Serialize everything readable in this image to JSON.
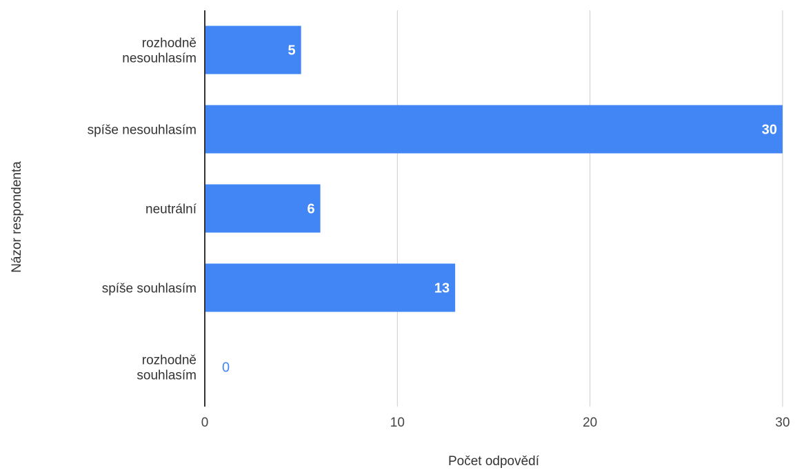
{
  "chart_data": {
    "type": "bar",
    "orientation": "horizontal",
    "categories": [
      [
        "rozhodně",
        "nesouhlasím"
      ],
      [
        "spíše nesouhlasím"
      ],
      [
        "neutrální"
      ],
      [
        "spíše souhlasím"
      ],
      [
        "rozhodně",
        "souhlasím"
      ]
    ],
    "values": [
      5,
      30,
      6,
      13,
      0
    ],
    "xlabel": "Počet odpovědí",
    "ylabel": "Názor respondenta",
    "xlim": [
      0,
      30
    ],
    "xticks": [
      0,
      10,
      20,
      30
    ],
    "grid": true,
    "bar_color": "#4285f4",
    "legend": "none"
  }
}
